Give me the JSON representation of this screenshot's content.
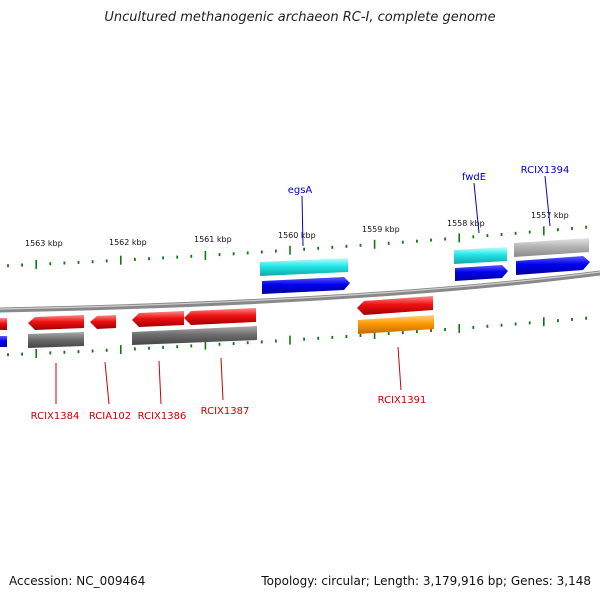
{
  "title": "Uncultured methanogenic archaeon RC-I, complete genome",
  "footer": {
    "accession": "Accession: NC_009464",
    "summary": "Topology: circular; Length: 3,179,916 bp; Genes: 3,148"
  },
  "kbp_ticks": [
    {
      "label": "1563 kbp"
    },
    {
      "label": "1562 kbp"
    },
    {
      "label": "1561 kbp"
    },
    {
      "label": "1560 kbp"
    },
    {
      "label": "1559 kbp"
    },
    {
      "label": "1558 kbp"
    },
    {
      "label": "1557 kbp"
    }
  ],
  "gene_labels_top": [
    {
      "text": "egsA",
      "color": "#0000cc"
    },
    {
      "text": "fwdE",
      "color": "#0000cc"
    },
    {
      "text": "RCIX1394",
      "color": "#0000cc"
    }
  ],
  "gene_labels_bottom": [
    {
      "text": "RCIX1384",
      "color": "#cc0000"
    },
    {
      "text": "RCIA102",
      "color": "#cc0000"
    },
    {
      "text": "RCIX1386",
      "color": "#cc0000"
    },
    {
      "text": "RCIX1387",
      "color": "#cc0000"
    },
    {
      "text": "RCIX1391",
      "color": "#cc0000"
    }
  ],
  "colors": {
    "cyan": "#22e6e6",
    "blue": "#0000ee",
    "red": "#ee1111",
    "gray": "#6e6e6e",
    "light_gray": "#b4b4b4",
    "orange": "#ff9900",
    "tick_green": "#117711",
    "backbone": "#888888"
  }
}
